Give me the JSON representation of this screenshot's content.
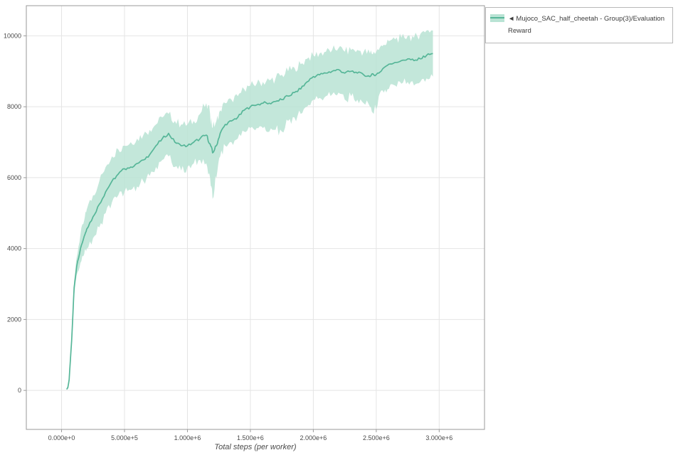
{
  "xaxis_label": "Total steps (per worker)",
  "legend": {
    "marker": "◄",
    "label": "Mujoco_SAC_half_cheetah - Group(3)/Evaluation Reward"
  },
  "chart_data": {
    "type": "line",
    "title": "",
    "xlabel": "Total steps (per worker)",
    "ylabel": "",
    "grid": true,
    "legend_position": "outside-top-right",
    "xlim": [
      -280000,
      3360000
    ],
    "ylim": [
      -1100,
      10850
    ],
    "x_ticks": {
      "values": [
        0,
        500000,
        1000000,
        1500000,
        2000000,
        2500000,
        3000000
      ],
      "labels": [
        "0.000e+0",
        "5.000e+5",
        "1.000e+6",
        "1.500e+6",
        "2.000e+6",
        "2.500e+6",
        "3.000e+6"
      ]
    },
    "y_ticks": {
      "values": [
        0,
        2000,
        4000,
        6000,
        8000,
        10000
      ],
      "labels": [
        "0",
        "2000",
        "4000",
        "6000",
        "8000",
        "10000"
      ]
    },
    "grid_color": "#e4e4e4",
    "axis_color": "#9a9a9a",
    "tick_color": "#4a4a4a",
    "series": [
      {
        "name": "Mujoco_SAC_half_cheetah - Group(3)/Evaluation Reward",
        "legend_marker": "◄",
        "line_color": "#56b698",
        "band_color": "#b9e3d4",
        "x": [
          40000,
          50000,
          60000,
          80000,
          100000,
          120000,
          150000,
          180000,
          200000,
          250000,
          300000,
          350000,
          400000,
          450000,
          500000,
          550000,
          600000,
          650000,
          700000,
          750000,
          800000,
          850000,
          900000,
          950000,
          1000000,
          1050000,
          1100000,
          1150000,
          1180000,
          1200000,
          1230000,
          1260000,
          1300000,
          1350000,
          1400000,
          1450000,
          1500000,
          1550000,
          1600000,
          1650000,
          1700000,
          1750000,
          1800000,
          1850000,
          1900000,
          1950000,
          2000000,
          2050000,
          2100000,
          2150000,
          2200000,
          2250000,
          2300000,
          2350000,
          2400000,
          2450000,
          2480000,
          2520000,
          2560000,
          2600000,
          2650000,
          2700000,
          2750000,
          2800000,
          2850000,
          2900000,
          2950000
        ],
        "mean": [
          30,
          80,
          300,
          1400,
          2900,
          3500,
          4000,
          4350,
          4550,
          4900,
          5250,
          5600,
          5900,
          6100,
          6250,
          6300,
          6400,
          6500,
          6650,
          6900,
          7100,
          7250,
          7000,
          6900,
          6900,
          7000,
          7100,
          7200,
          6950,
          6700,
          6900,
          7250,
          7500,
          7600,
          7700,
          7900,
          8000,
          8050,
          8100,
          8100,
          8150,
          8200,
          8300,
          8400,
          8500,
          8700,
          8850,
          8900,
          8950,
          9000,
          9050,
          8950,
          9000,
          8950,
          8900,
          8850,
          8900,
          8950,
          9100,
          9200,
          9250,
          9300,
          9350,
          9300,
          9350,
          9450,
          9500
        ],
        "lower": [
          10,
          40,
          200,
          1250,
          2700,
          3250,
          3600,
          3850,
          4000,
          4300,
          4600,
          5000,
          5300,
          5500,
          5600,
          5650,
          5750,
          5900,
          6050,
          6300,
          6500,
          6600,
          6300,
          6200,
          6300,
          6400,
          6500,
          6400,
          6000,
          5400,
          6000,
          6600,
          6900,
          7000,
          7100,
          7300,
          7400,
          7400,
          7400,
          7300,
          7350,
          7300,
          7600,
          7700,
          7800,
          8000,
          8200,
          8250,
          8300,
          8350,
          8400,
          8200,
          8300,
          8200,
          8100,
          8000,
          7800,
          8300,
          8400,
          8500,
          8600,
          8650,
          8700,
          8600,
          8700,
          8800,
          8850
        ],
        "upper": [
          60,
          130,
          420,
          1550,
          3100,
          3750,
          4400,
          4800,
          5100,
          5500,
          5900,
          6300,
          6600,
          6800,
          6900,
          7000,
          7100,
          7200,
          7350,
          7500,
          7700,
          7800,
          7600,
          7500,
          7500,
          7600,
          7800,
          8100,
          7800,
          7400,
          7600,
          7900,
          8100,
          8200,
          8300,
          8500,
          8600,
          8650,
          8700,
          8750,
          8800,
          8900,
          9000,
          9100,
          9200,
          9350,
          9450,
          9500,
          9550,
          9600,
          9650,
          9550,
          9600,
          9600,
          9550,
          9500,
          9550,
          9600,
          9750,
          9850,
          9900,
          9950,
          10000,
          9950,
          10050,
          10150,
          10150
        ]
      }
    ]
  }
}
